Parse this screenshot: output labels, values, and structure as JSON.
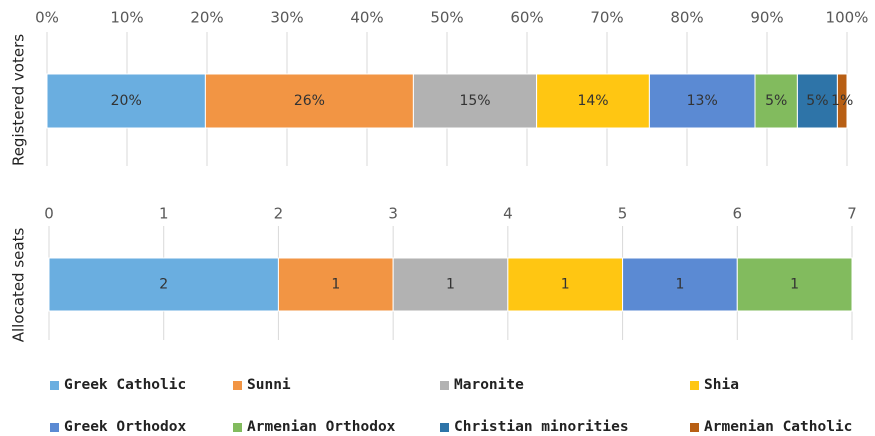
{
  "chart_data": [
    {
      "type": "bar",
      "orientation": "horizontal",
      "stacked": true,
      "ylabel": "Registered voters",
      "xlim": [
        0,
        100
      ],
      "xticks": [
        {
          "value": 0,
          "label": "0%"
        },
        {
          "value": 10,
          "label": "10%"
        },
        {
          "value": 20,
          "label": "20%"
        },
        {
          "value": 30,
          "label": "30%"
        },
        {
          "value": 40,
          "label": "40%"
        },
        {
          "value": 50,
          "label": "50%"
        },
        {
          "value": 60,
          "label": "60%"
        },
        {
          "value": 70,
          "label": "70%"
        },
        {
          "value": 80,
          "label": "80%"
        },
        {
          "value": 90,
          "label": "90%"
        },
        {
          "value": 100,
          "label": "100%"
        }
      ],
      "grid": true,
      "legend": "bottom",
      "series": [
        {
          "name": "Greek Catholic",
          "color": "#6aaee0",
          "values": [
            19.8
          ],
          "value_labels": [
            "20%"
          ]
        },
        {
          "name": "Sunni",
          "color": "#f29544",
          "values": [
            26
          ],
          "value_labels": [
            "26%"
          ]
        },
        {
          "name": "Maronite",
          "color": "#b2b2b2",
          "values": [
            15.4
          ],
          "value_labels": [
            "15%"
          ]
        },
        {
          "name": "Shia",
          "color": "#ffc612",
          "values": [
            14.1
          ],
          "value_labels": [
            "14%"
          ]
        },
        {
          "name": "Greek Orthodox",
          "color": "#5b8ad3",
          "values": [
            13.2
          ],
          "value_labels": [
            "13%"
          ]
        },
        {
          "name": "Armenian Orthodox",
          "color": "#82bb5e",
          "values": [
            5.3
          ],
          "value_labels": [
            "5%"
          ]
        },
        {
          "name": "Christian minorities",
          "color": "#2e74a8",
          "values": [
            5
          ],
          "value_labels": [
            "5%"
          ]
        },
        {
          "name": "Armenian Catholic",
          "color": "#b85f14",
          "values": [
            1.2
          ],
          "value_labels": [
            "1%"
          ]
        }
      ]
    },
    {
      "type": "bar",
      "orientation": "horizontal",
      "stacked": true,
      "ylabel": "Allocated seats",
      "xlim": [
        0,
        7
      ],
      "xticks": [
        0,
        1,
        2,
        3,
        4,
        5,
        6,
        7
      ],
      "grid": true,
      "series": [
        {
          "color": "#6aaee0",
          "values": [
            2
          ]
        },
        {
          "color": "#f29544",
          "values": [
            1
          ]
        },
        {
          "color": "#b2b2b2",
          "values": [
            1
          ]
        },
        {
          "color": "#ffc612",
          "values": [
            1
          ]
        },
        {
          "color": "#5b8ad3",
          "values": [
            1
          ]
        },
        {
          "color": "#82bb5e",
          "values": [
            1
          ]
        }
      ]
    }
  ]
}
